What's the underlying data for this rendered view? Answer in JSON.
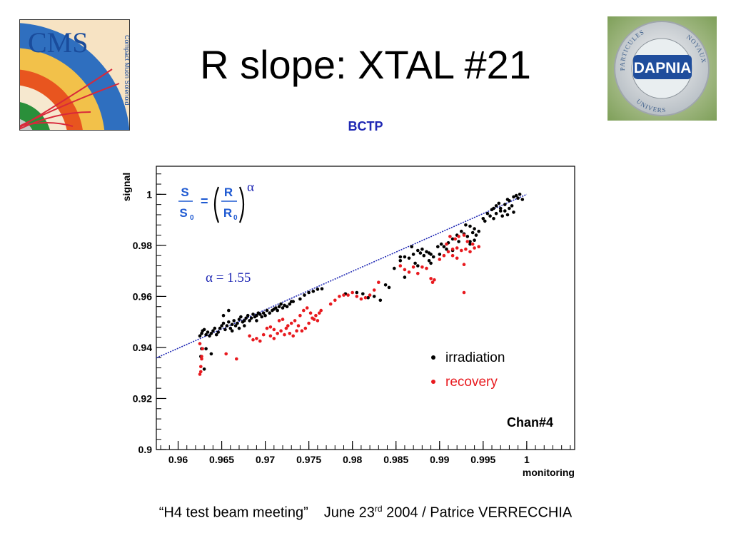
{
  "slide": {
    "title": "R slope: XTAL #21",
    "subtitle": "BCTP"
  },
  "logos": {
    "left": {
      "text": "CMS",
      "subtext": "Compact Muon Solenoid",
      "icon": "cms-logo"
    },
    "right": {
      "text": "DAPNIA",
      "ring_top": "PARTICULES",
      "ring_right": "NOYAUX",
      "ring_bottom": "UNIVERS",
      "icon": "dapnia-logo"
    }
  },
  "footer": {
    "meeting": "“H4 test beam meeting”",
    "date_prefix": "June 23",
    "date_sup": "rd",
    "date_suffix": " 2004 / Patrice VERRECCHIA"
  },
  "colors": {
    "irradiation": "#000000",
    "recovery": "#e8191e",
    "fit": "#1f28b4",
    "formula": "#1f5ad2"
  },
  "chart_data": {
    "type": "scatter",
    "xlabel": "monitoring",
    "ylabel": "signal",
    "xlim": [
      0.9575,
      1.0055
    ],
    "ylim": [
      0.9,
      1.011
    ],
    "xticks": [
      "0.96",
      "0.965",
      "0.97",
      "0.975",
      "0.98",
      "0.985",
      "0.99",
      "0.995",
      "1"
    ],
    "yticks": [
      "0.9",
      "0.92",
      "0.94",
      "0.96",
      "0.98",
      "1"
    ],
    "formula": {
      "S": "S",
      "S0": "S",
      "S0_sub": "0",
      "R": "R",
      "R0": "R",
      "R0_sub": "0",
      "eq": "=",
      "alpha": "α"
    },
    "fit_label": "α = 1.55",
    "alpha": 1.55,
    "fit_line": [
      [
        0.9575,
        0.9359
      ],
      [
        1.0,
        1.0
      ]
    ],
    "legend": [
      {
        "name": "irradiation",
        "color": "#000000"
      },
      {
        "name": "recovery",
        "color": "#e8191e"
      }
    ],
    "annotation": "Chan#4",
    "series": [
      {
        "name": "irradiation",
        "color": "#000000",
        "points": [
          [
            0.9625,
            0.9445
          ],
          [
            0.9627,
            0.9455
          ],
          [
            0.9628,
            0.9465
          ],
          [
            0.963,
            0.947
          ],
          [
            0.9632,
            0.945
          ],
          [
            0.9634,
            0.946
          ],
          [
            0.9636,
            0.9445
          ],
          [
            0.9638,
            0.9455
          ],
          [
            0.964,
            0.9465
          ],
          [
            0.9642,
            0.9475
          ],
          [
            0.9644,
            0.945
          ],
          [
            0.9646,
            0.946
          ],
          [
            0.9648,
            0.9475
          ],
          [
            0.965,
            0.9485
          ],
          [
            0.9652,
            0.9495
          ],
          [
            0.9654,
            0.947
          ],
          [
            0.9656,
            0.9485
          ],
          [
            0.9658,
            0.95
          ],
          [
            0.966,
            0.9475
          ],
          [
            0.9662,
            0.949
          ],
          [
            0.9664,
            0.9505
          ],
          [
            0.9666,
            0.9485
          ],
          [
            0.9668,
            0.9495
          ],
          [
            0.967,
            0.951
          ],
          [
            0.9672,
            0.952
          ],
          [
            0.9674,
            0.95
          ],
          [
            0.9676,
            0.9505
          ],
          [
            0.9678,
            0.9515
          ],
          [
            0.968,
            0.9525
          ],
          [
            0.9682,
            0.9505
          ],
          [
            0.9684,
            0.9515
          ],
          [
            0.9686,
            0.953
          ],
          [
            0.9688,
            0.952
          ],
          [
            0.969,
            0.9525
          ],
          [
            0.9692,
            0.9535
          ],
          [
            0.9694,
            0.953
          ],
          [
            0.9696,
            0.952
          ],
          [
            0.9698,
            0.9535
          ],
          [
            0.97,
            0.9525
          ],
          [
            0.9702,
            0.9545
          ],
          [
            0.9705,
            0.9535
          ],
          [
            0.9708,
            0.9545
          ],
          [
            0.971,
            0.955
          ],
          [
            0.9712,
            0.9555
          ],
          [
            0.9714,
            0.9545
          ],
          [
            0.9716,
            0.956
          ],
          [
            0.9718,
            0.957
          ],
          [
            0.972,
            0.9555
          ],
          [
            0.9722,
            0.9565
          ],
          [
            0.9725,
            0.956
          ],
          [
            0.9728,
            0.957
          ],
          [
            0.973,
            0.958
          ],
          [
            0.9732,
            0.958
          ],
          [
            0.974,
            0.959
          ],
          [
            0.9745,
            0.9605
          ],
          [
            0.975,
            0.9615
          ],
          [
            0.9755,
            0.962
          ],
          [
            0.976,
            0.9628
          ],
          [
            0.9765,
            0.963
          ],
          [
            0.9652,
            0.9525
          ],
          [
            0.9658,
            0.9545
          ],
          [
            0.9632,
            0.9395
          ],
          [
            0.9638,
            0.9375
          ],
          [
            0.963,
            0.9315
          ],
          [
            0.9626,
            0.9365
          ],
          [
            0.9627,
            0.9395
          ],
          [
            0.9662,
            0.9465
          ],
          [
            0.967,
            0.9475
          ],
          [
            0.9676,
            0.9485
          ],
          [
            0.969,
            0.9505
          ],
          [
            0.9805,
            0.9615
          ],
          [
            0.9812,
            0.961
          ],
          [
            0.9818,
            0.9595
          ],
          [
            0.9825,
            0.96
          ],
          [
            0.9832,
            0.9585
          ],
          [
            0.9792,
            0.961
          ],
          [
            0.9838,
            0.9645
          ],
          [
            0.9842,
            0.9635
          ],
          [
            0.9848,
            0.971
          ],
          [
            0.9855,
            0.974
          ],
          [
            0.986,
            0.9755
          ],
          [
            0.9865,
            0.975
          ],
          [
            0.987,
            0.9765
          ],
          [
            0.9875,
            0.978
          ],
          [
            0.9878,
            0.977
          ],
          [
            0.988,
            0.9785
          ],
          [
            0.9882,
            0.976
          ],
          [
            0.9885,
            0.9775
          ],
          [
            0.9888,
            0.977
          ],
          [
            0.989,
            0.9765
          ],
          [
            0.9893,
            0.9755
          ],
          [
            0.9855,
            0.9755
          ],
          [
            0.9868,
            0.9795
          ],
          [
            0.986,
            0.9675
          ],
          [
            0.9872,
            0.973
          ],
          [
            0.9875,
            0.972
          ],
          [
            0.9888,
            0.974
          ],
          [
            0.989,
            0.973
          ],
          [
            0.99,
            0.9765
          ],
          [
            0.9905,
            0.9795
          ],
          [
            0.991,
            0.981
          ],
          [
            0.9915,
            0.9825
          ],
          [
            0.992,
            0.984
          ],
          [
            0.9925,
            0.9855
          ],
          [
            0.993,
            0.988
          ],
          [
            0.9935,
            0.9875
          ],
          [
            0.994,
            0.9865
          ],
          [
            0.9945,
            0.9855
          ],
          [
            0.9928,
            0.9845
          ],
          [
            0.9932,
            0.9835
          ],
          [
            0.9938,
            0.985
          ],
          [
            0.9942,
            0.984
          ],
          [
            0.9935,
            0.9815
          ],
          [
            0.994,
            0.982
          ],
          [
            0.9935,
            0.9805
          ],
          [
            0.9902,
            0.9805
          ],
          [
            0.9908,
            0.9785
          ],
          [
            0.9915,
            0.978
          ],
          [
            0.9898,
            0.9795
          ],
          [
            0.9922,
            0.9815
          ],
          [
            0.995,
            0.9905
          ],
          [
            0.9955,
            0.9925
          ],
          [
            0.996,
            0.994
          ],
          [
            0.9965,
            0.9955
          ],
          [
            0.997,
            0.9945
          ],
          [
            0.9975,
            0.996
          ],
          [
            0.998,
            0.9975
          ],
          [
            0.9985,
            0.999
          ],
          [
            0.999,
            0.9985
          ],
          [
            0.9995,
            0.998
          ],
          [
            0.9965,
            0.9925
          ],
          [
            0.997,
            0.9935
          ],
          [
            0.9975,
            0.9935
          ],
          [
            0.998,
            0.9945
          ],
          [
            0.9972,
            0.9915
          ],
          [
            0.9978,
            0.992
          ],
          [
            0.9985,
            0.993
          ],
          [
            0.9958,
            0.9915
          ],
          [
            0.9962,
            0.9905
          ],
          [
            0.9952,
            0.9895
          ],
          [
            0.9988,
            0.9995
          ],
          [
            0.9992,
            1.0
          ],
          [
            0.9978,
            0.998
          ],
          [
            0.9968,
            0.9965
          ],
          [
            0.9962,
            0.9945
          ],
          [
            0.9983,
            0.9955
          ]
        ]
      },
      {
        "name": "recovery",
        "color": "#e8191e",
        "points": [
          [
            0.9625,
            0.9295
          ],
          [
            0.9626,
            0.9305
          ],
          [
            0.9626,
            0.9325
          ],
          [
            0.9627,
            0.9355
          ],
          [
            0.9627,
            0.9365
          ],
          [
            0.9628,
            0.9395
          ],
          [
            0.9625,
            0.9415
          ],
          [
            0.9655,
            0.9375
          ],
          [
            0.9667,
            0.9355
          ],
          [
            0.9682,
            0.9445
          ],
          [
            0.9686,
            0.943
          ],
          [
            0.969,
            0.9435
          ],
          [
            0.9694,
            0.9425
          ],
          [
            0.9698,
            0.945
          ],
          [
            0.9702,
            0.9475
          ],
          [
            0.9706,
            0.948
          ],
          [
            0.971,
            0.947
          ],
          [
            0.9714,
            0.9455
          ],
          [
            0.9718,
            0.9465
          ],
          [
            0.9722,
            0.945
          ],
          [
            0.9726,
            0.9485
          ],
          [
            0.973,
            0.9495
          ],
          [
            0.9734,
            0.9505
          ],
          [
            0.9738,
            0.9485
          ],
          [
            0.9742,
            0.9465
          ],
          [
            0.9746,
            0.9475
          ],
          [
            0.975,
            0.9495
          ],
          [
            0.9754,
            0.9515
          ],
          [
            0.9758,
            0.9525
          ],
          [
            0.9762,
            0.9535
          ],
          [
            0.9706,
            0.9445
          ],
          [
            0.971,
            0.9435
          ],
          [
            0.9716,
            0.9505
          ],
          [
            0.972,
            0.951
          ],
          [
            0.9724,
            0.9475
          ],
          [
            0.9728,
            0.9455
          ],
          [
            0.9732,
            0.9445
          ],
          [
            0.9736,
            0.9465
          ],
          [
            0.974,
            0.9525
          ],
          [
            0.9744,
            0.9545
          ],
          [
            0.9748,
            0.9555
          ],
          [
            0.9752,
            0.9535
          ],
          [
            0.9756,
            0.951
          ],
          [
            0.976,
            0.9505
          ],
          [
            0.9764,
            0.9545
          ],
          [
            0.9775,
            0.957
          ],
          [
            0.978,
            0.9585
          ],
          [
            0.9785,
            0.96
          ],
          [
            0.979,
            0.9605
          ],
          [
            0.9795,
            0.9605
          ],
          [
            0.98,
            0.9615
          ],
          [
            0.9805,
            0.96
          ],
          [
            0.981,
            0.959
          ],
          [
            0.9815,
            0.9595
          ],
          [
            0.982,
            0.9605
          ],
          [
            0.9825,
            0.9625
          ],
          [
            0.983,
            0.9655
          ],
          [
            0.9855,
            0.972
          ],
          [
            0.986,
            0.9705
          ],
          [
            0.9865,
            0.9695
          ],
          [
            0.987,
            0.9715
          ],
          [
            0.9875,
            0.969
          ],
          [
            0.988,
            0.9715
          ],
          [
            0.9885,
            0.971
          ],
          [
            0.989,
            0.967
          ],
          [
            0.9892,
            0.9655
          ],
          [
            0.9894,
            0.9665
          ],
          [
            0.99,
            0.9745
          ],
          [
            0.9905,
            0.976
          ],
          [
            0.991,
            0.9775
          ],
          [
            0.9915,
            0.9785
          ],
          [
            0.992,
            0.979
          ],
          [
            0.9925,
            0.978
          ],
          [
            0.993,
            0.9785
          ],
          [
            0.9935,
            0.9775
          ],
          [
            0.994,
            0.979
          ],
          [
            0.9945,
            0.9795
          ],
          [
            0.9918,
            0.9825
          ],
          [
            0.9922,
            0.9835
          ],
          [
            0.9928,
            0.984
          ],
          [
            0.9932,
            0.9815
          ],
          [
            0.9938,
            0.9805
          ],
          [
            0.9928,
            0.9725
          ],
          [
            0.9928,
            0.9615
          ],
          [
            0.9908,
            0.9805
          ],
          [
            0.9912,
            0.9835
          ],
          [
            0.9915,
            0.976
          ],
          [
            0.992,
            0.975
          ]
        ]
      }
    ]
  }
}
